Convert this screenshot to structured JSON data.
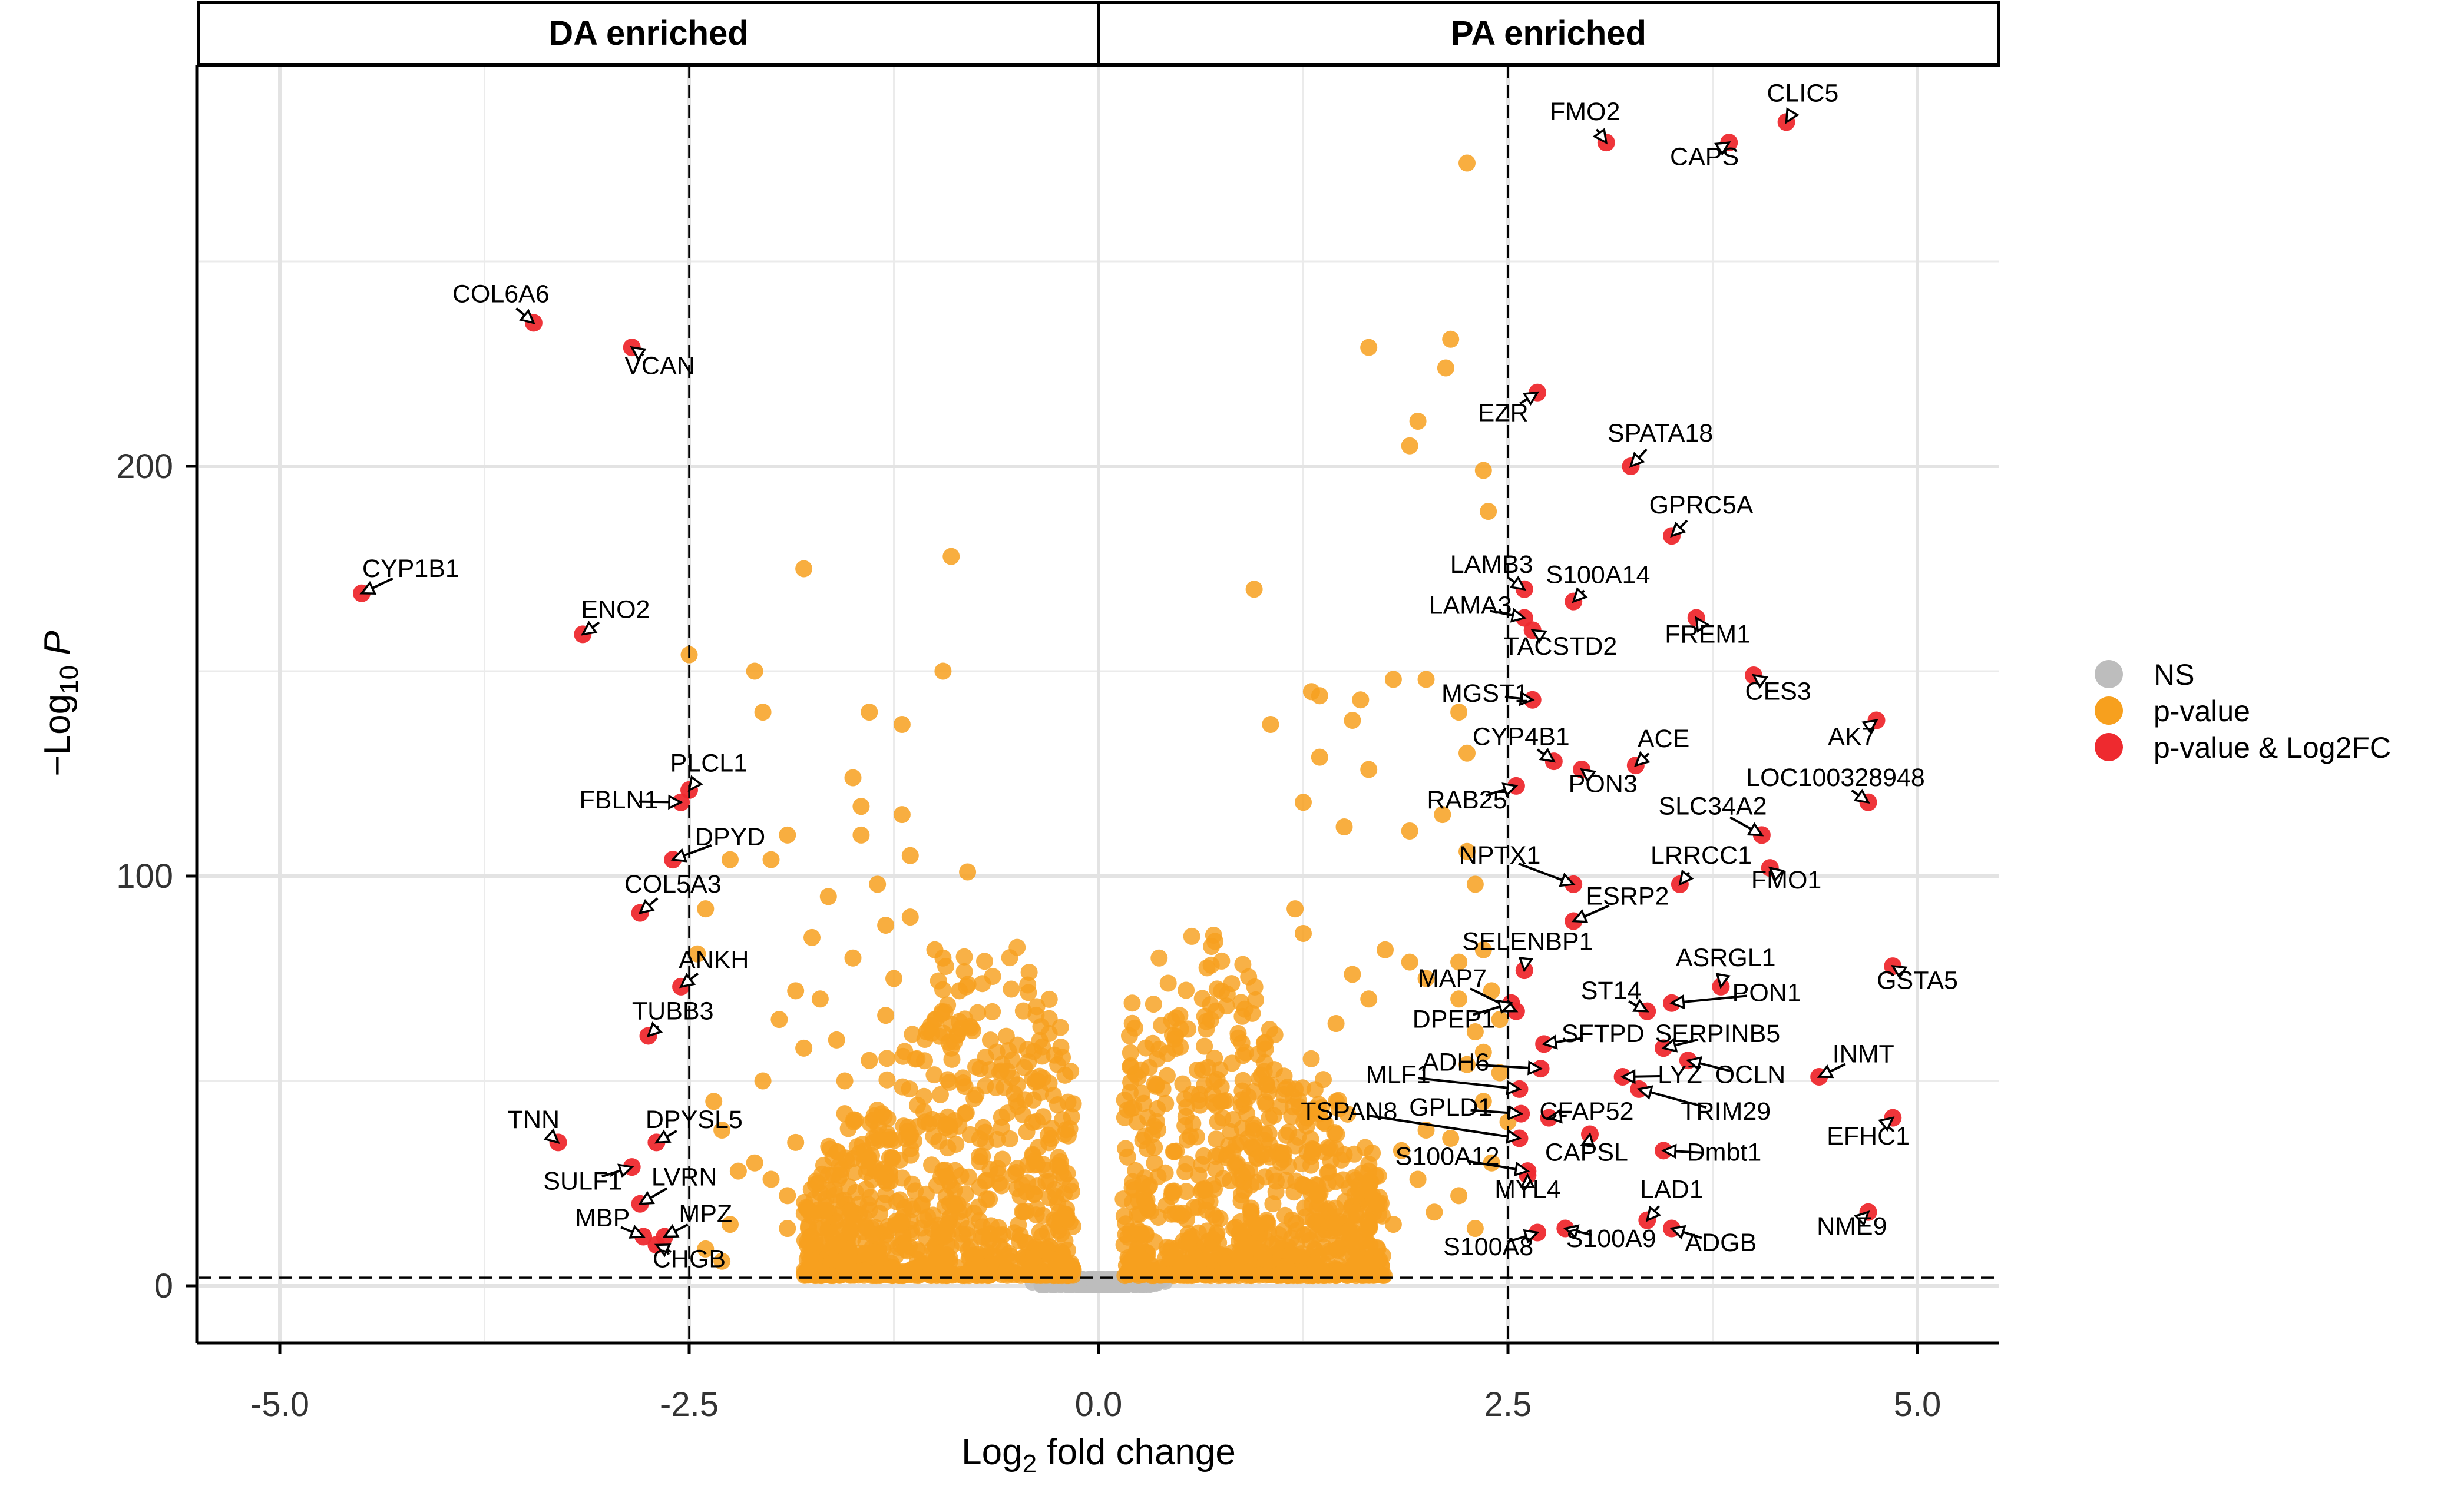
{
  "chart_data": {
    "type": "scatter",
    "subtype": "volcano",
    "xlabel": "Log2 fold change",
    "ylabel": "-Log10 P",
    "xlim": [
      -5.5,
      5.5
    ],
    "ylim": [
      -13,
      297
    ],
    "xticks": [
      -5.0,
      -2.5,
      0.0,
      2.5,
      5.0
    ],
    "xtick_labels": [
      "-5.0",
      "-2.5",
      "0.0",
      "2.5",
      "5.0"
    ],
    "yticks": [
      0,
      100,
      200
    ],
    "ytick_labels": [
      "0",
      "100",
      "200"
    ],
    "x_minor_ticks": [
      -3.75,
      -1.25,
      1.25,
      3.75
    ],
    "y_minor_ticks": [
      50,
      150,
      250
    ],
    "fc_threshold_lines": [
      -2.5,
      2.5
    ],
    "p_threshold_line": 2,
    "facet_left": "DA enriched",
    "facet_right": "PA enriched",
    "legend_position": "right",
    "legend": [
      {
        "label": "NS",
        "color": "#bdbdbd"
      },
      {
        "label": "p-value",
        "color": "#f7a01e"
      },
      {
        "label": "p-value & Log2FC",
        "color": "#ee2a2f"
      }
    ],
    "colors": {
      "ns": "#bdbdbd",
      "pvalue": "#f7a01e",
      "both": "#ee2a2f"
    },
    "pvalue_points": [
      [
        2.25,
        274
      ],
      [
        2.15,
        231
      ],
      [
        2.12,
        224
      ],
      [
        1.65,
        229
      ],
      [
        1.95,
        211
      ],
      [
        1.9,
        205
      ],
      [
        2.35,
        199
      ],
      [
        2.38,
        189
      ],
      [
        0.95,
        170
      ],
      [
        1.8,
        148
      ],
      [
        1.35,
        144
      ],
      [
        1.3,
        145
      ],
      [
        1.6,
        143
      ],
      [
        1.05,
        137
      ],
      [
        1.55,
        138
      ],
      [
        2.0,
        148
      ],
      [
        2.2,
        140
      ],
      [
        2.25,
        130
      ],
      [
        1.65,
        126
      ],
      [
        1.35,
        129
      ],
      [
        1.25,
        118
      ],
      [
        1.5,
        112
      ],
      [
        1.9,
        111
      ],
      [
        2.1,
        115
      ],
      [
        2.25,
        106
      ],
      [
        2.3,
        98
      ],
      [
        2.35,
        82
      ],
      [
        2.2,
        79
      ],
      [
        1.75,
        82
      ],
      [
        1.9,
        79
      ],
      [
        2.0,
        75
      ],
      [
        2.2,
        70
      ],
      [
        2.3,
        62
      ],
      [
        2.35,
        57
      ],
      [
        2.25,
        54
      ],
      [
        1.55,
        76
      ],
      [
        1.65,
        70
      ],
      [
        1.45,
        64
      ],
      [
        1.2,
        92
      ],
      [
        1.25,
        86
      ],
      [
        2.4,
        72
      ],
      [
        2.45,
        65
      ],
      [
        2.5,
        40
      ],
      [
        2.45,
        52
      ],
      [
        2.35,
        45
      ],
      [
        2.15,
        36
      ],
      [
        2.0,
        38
      ],
      [
        1.85,
        33
      ],
      [
        1.65,
        28
      ],
      [
        1.5,
        32
      ],
      [
        1.4,
        25
      ],
      [
        1.7,
        20
      ],
      [
        1.8,
        15
      ],
      [
        2.05,
        18
      ],
      [
        2.2,
        22
      ],
      [
        2.3,
        14
      ],
      [
        1.6,
        12
      ],
      [
        1.45,
        10
      ],
      [
        1.95,
        26
      ],
      [
        2.4,
        30
      ],
      [
        1.35,
        42
      ],
      [
        1.2,
        48
      ],
      [
        -0.9,
        178
      ],
      [
        -1.8,
        175
      ],
      [
        -0.95,
        150
      ],
      [
        -2.5,
        154
      ],
      [
        -2.1,
        150
      ],
      [
        -2.05,
        140
      ],
      [
        -1.4,
        140
      ],
      [
        -1.2,
        137
      ],
      [
        -1.5,
        124
      ],
      [
        -1.45,
        117
      ],
      [
        -1.2,
        115
      ],
      [
        -0.8,
        101
      ],
      [
        -1.9,
        110
      ],
      [
        -2.0,
        104
      ],
      [
        -2.25,
        104
      ],
      [
        -2.4,
        92
      ],
      [
        -2.45,
        81
      ],
      [
        -2.35,
        45
      ],
      [
        -2.3,
        38
      ],
      [
        -2.2,
        28
      ],
      [
        -2.1,
        30
      ],
      [
        -2.0,
        26
      ],
      [
        -1.85,
        35
      ],
      [
        -1.9,
        22
      ],
      [
        -2.25,
        15
      ],
      [
        -2.3,
        6
      ],
      [
        -2.4,
        9
      ],
      [
        -1.9,
        14
      ],
      [
        -1.75,
        17
      ],
      [
        -1.65,
        27
      ],
      [
        -1.5,
        31
      ],
      [
        -1.55,
        42
      ],
      [
        -1.4,
        55
      ],
      [
        -1.6,
        60
      ],
      [
        -1.7,
        70
      ],
      [
        -1.85,
        72
      ],
      [
        -1.95,
        65
      ],
      [
        -1.3,
        88
      ],
      [
        -1.35,
        98
      ],
      [
        -1.15,
        90
      ],
      [
        -1.0,
        82
      ],
      [
        -0.95,
        80
      ],
      [
        -0.85,
        72
      ],
      [
        -1.15,
        105
      ],
      [
        -1.45,
        110
      ],
      [
        -1.65,
        95
      ],
      [
        -1.75,
        85
      ],
      [
        -1.25,
        75
      ],
      [
        -1.05,
        62
      ],
      [
        -1.5,
        80
      ],
      [
        -1.8,
        58
      ],
      [
        -2.05,
        50
      ],
      [
        -0.9,
        58
      ],
      [
        -1.0,
        65
      ],
      [
        -1.55,
        50
      ],
      [
        -1.3,
        66
      ]
    ],
    "pvalue_cloud": {
      "left_x_range": [
        -1.8,
        -0.15
      ],
      "right_x_range": [
        0.15,
        1.75
      ],
      "count_per_side": 850
    },
    "ns_cloud": {
      "x_range": [
        -0.4,
        0.4
      ],
      "count": 500
    },
    "sig_genes": [
      {
        "gene": "FMO2",
        "x": 3.1,
        "y": 279
      },
      {
        "gene": "CLIC5",
        "x": 4.2,
        "y": 284
      },
      {
        "gene": "CAPS",
        "x": 3.85,
        "y": 279
      },
      {
        "gene": "COL6A6",
        "x": -3.45,
        "y": 235
      },
      {
        "gene": "VCAN",
        "x": -2.85,
        "y": 229
      },
      {
        "gene": "EZR",
        "x": 2.68,
        "y": 218
      },
      {
        "gene": "SPATA18",
        "x": 3.25,
        "y": 200
      },
      {
        "gene": "GPRC5A",
        "x": 3.5,
        "y": 183
      },
      {
        "gene": "CYP1B1",
        "x": -4.5,
        "y": 169
      },
      {
        "gene": "LAMB3",
        "x": 2.6,
        "y": 170
      },
      {
        "gene": "S100A14",
        "x": 2.9,
        "y": 167
      },
      {
        "gene": "ENO2",
        "x": -3.15,
        "y": 159
      },
      {
        "gene": "LAMA3",
        "x": 2.6,
        "y": 163
      },
      {
        "gene": "TACSTD2",
        "x": 2.65,
        "y": 160
      },
      {
        "gene": "FREM1",
        "x": 3.65,
        "y": 163
      },
      {
        "gene": "MGST1",
        "x": 2.65,
        "y": 143
      },
      {
        "gene": "CES3",
        "x": 4.0,
        "y": 149
      },
      {
        "gene": "AK7",
        "x": 4.75,
        "y": 138
      },
      {
        "gene": "CYP4B1",
        "x": 2.78,
        "y": 128
      },
      {
        "gene": "ACE",
        "x": 3.28,
        "y": 127
      },
      {
        "gene": "PON3",
        "x": 2.95,
        "y": 126
      },
      {
        "gene": "LOC100328948",
        "x": 4.7,
        "y": 118
      },
      {
        "gene": "PLCL1",
        "x": -2.5,
        "y": 121
      },
      {
        "gene": "FBLN1",
        "x": -2.55,
        "y": 118
      },
      {
        "gene": "RAB25",
        "x": 2.55,
        "y": 122
      },
      {
        "gene": "SLC34A2",
        "x": 4.05,
        "y": 110
      },
      {
        "gene": "DPYD",
        "x": -2.6,
        "y": 104
      },
      {
        "gene": "LRRCC1",
        "x": 3.55,
        "y": 98
      },
      {
        "gene": "FMO1",
        "x": 4.1,
        "y": 102
      },
      {
        "gene": "NPTX1",
        "x": 2.9,
        "y": 98
      },
      {
        "gene": "COL5A3",
        "x": -2.8,
        "y": 91
      },
      {
        "gene": "ESRP2",
        "x": 2.9,
        "y": 89
      },
      {
        "gene": "SELENBP1",
        "x": 2.6,
        "y": 77
      },
      {
        "gene": "GSTA5",
        "x": 4.85,
        "y": 78
      },
      {
        "gene": "ANKH",
        "x": -2.55,
        "y": 73
      },
      {
        "gene": "ASRGL1",
        "x": 3.8,
        "y": 73
      },
      {
        "gene": "PON1",
        "x": 3.5,
        "y": 69
      },
      {
        "gene": "ST14",
        "x": 3.35,
        "y": 67
      },
      {
        "gene": "MAP7",
        "x": 2.55,
        "y": 67
      },
      {
        "gene": "DPEP1",
        "x": 2.52,
        "y": 69
      },
      {
        "gene": "TUBB3",
        "x": -2.75,
        "y": 61
      },
      {
        "gene": "SFTPD",
        "x": 2.72,
        "y": 59
      },
      {
        "gene": "SERPINB5",
        "x": 3.45,
        "y": 58
      },
      {
        "gene": "OCLN",
        "x": 3.6,
        "y": 55
      },
      {
        "gene": "INMT",
        "x": 4.4,
        "y": 51
      },
      {
        "gene": "LYZ",
        "x": 3.2,
        "y": 51
      },
      {
        "gene": "ADH6",
        "x": 2.7,
        "y": 53
      },
      {
        "gene": "MLF1",
        "x": 2.57,
        "y": 48
      },
      {
        "gene": "TRIM29",
        "x": 3.3,
        "y": 48
      },
      {
        "gene": "GPLD1",
        "x": 2.58,
        "y": 42
      },
      {
        "gene": "CFAP52",
        "x": 2.75,
        "y": 41
      },
      {
        "gene": "EFHC1",
        "x": 4.85,
        "y": 41
      },
      {
        "gene": "TSPAN8",
        "x": 2.57,
        "y": 36
      },
      {
        "gene": "CAPSL",
        "x": 3.0,
        "y": 37
      },
      {
        "gene": "DPYSL5",
        "x": -2.7,
        "y": 35
      },
      {
        "gene": "TNN",
        "x": -3.3,
        "y": 35
      },
      {
        "gene": "Dmbt1",
        "x": 3.45,
        "y": 33
      },
      {
        "gene": "S100A12",
        "x": 2.62,
        "y": 28
      },
      {
        "gene": "SULF1",
        "x": -2.85,
        "y": 29
      },
      {
        "gene": "MYL4",
        "x": 2.62,
        "y": 27
      },
      {
        "gene": "LVRN",
        "x": -2.8,
        "y": 20
      },
      {
        "gene": "LAD1",
        "x": 3.35,
        "y": 16
      },
      {
        "gene": "NME9",
        "x": 4.7,
        "y": 18
      },
      {
        "gene": "ADGB",
        "x": 3.5,
        "y": 14
      },
      {
        "gene": "S100A9",
        "x": 2.85,
        "y": 14
      },
      {
        "gene": "S100A8",
        "x": 2.68,
        "y": 13
      },
      {
        "gene": "MBP",
        "x": -2.78,
        "y": 12
      },
      {
        "gene": "MPZ",
        "x": -2.65,
        "y": 12
      },
      {
        "gene": "CHGB",
        "x": -2.7,
        "y": 10
      }
    ],
    "labels": [
      {
        "gene": "FMO2",
        "lx": 2.97,
        "ly": 284.5
      },
      {
        "gene": "CLIC5",
        "lx": 4.3,
        "ly": 289
      },
      {
        "gene": "CAPS",
        "lx": 3.7,
        "ly": 273.5
      },
      {
        "gene": "COL6A6",
        "lx": -3.65,
        "ly": 240
      },
      {
        "gene": "VCAN",
        "lx": -2.68,
        "ly": 222.5
      },
      {
        "gene": "EZR",
        "lx": 2.47,
        "ly": 211
      },
      {
        "gene": "SPATA18",
        "lx": 3.43,
        "ly": 206
      },
      {
        "gene": "GPRC5A",
        "lx": 3.68,
        "ly": 188.5
      },
      {
        "gene": "CYP1B1",
        "lx": -4.2,
        "ly": 173
      },
      {
        "gene": "LAMB3",
        "lx": 2.4,
        "ly": 174
      },
      {
        "gene": "S100A14",
        "lx": 3.05,
        "ly": 171.5
      },
      {
        "gene": "ENO2",
        "lx": -2.95,
        "ly": 163
      },
      {
        "gene": "LAMA3",
        "lx": 2.27,
        "ly": 164
      },
      {
        "gene": "TACSTD2",
        "lx": 2.82,
        "ly": 154
      },
      {
        "gene": "FREM1",
        "lx": 3.72,
        "ly": 157
      },
      {
        "gene": "MGST1",
        "lx": 2.36,
        "ly": 142.5
      },
      {
        "gene": "CES3",
        "lx": 4.15,
        "ly": 143
      },
      {
        "gene": "AK7",
        "lx": 4.6,
        "ly": 132
      },
      {
        "gene": "CYP4B1",
        "lx": 2.58,
        "ly": 132
      },
      {
        "gene": "ACE",
        "lx": 3.45,
        "ly": 131.5
      },
      {
        "gene": "PON3",
        "lx": 3.08,
        "ly": 120.5
      },
      {
        "gene": "LOC100328948",
        "lx": 4.5,
        "ly": 122
      },
      {
        "gene": "PLCL1",
        "lx": -2.38,
        "ly": 125.5
      },
      {
        "gene": "FBLN1",
        "lx": -2.93,
        "ly": 116.5
      },
      {
        "gene": "RAB25",
        "lx": 2.25,
        "ly": 116.5
      },
      {
        "gene": "SLC34A2",
        "lx": 3.75,
        "ly": 115
      },
      {
        "gene": "DPYD",
        "lx": -2.25,
        "ly": 107.5
      },
      {
        "gene": "LRRCC1",
        "lx": 3.68,
        "ly": 103
      },
      {
        "gene": "FMO1",
        "lx": 4.2,
        "ly": 97
      },
      {
        "gene": "NPTX1",
        "lx": 2.45,
        "ly": 103
      },
      {
        "gene": "COL5A3",
        "lx": -2.6,
        "ly": 96
      },
      {
        "gene": "ESRP2",
        "lx": 3.23,
        "ly": 93
      },
      {
        "gene": "SELENBP1",
        "lx": 2.62,
        "ly": 82
      },
      {
        "gene": "GSTA5",
        "lx": 5.0,
        "ly": 72.5
      },
      {
        "gene": "ANKH",
        "lx": -2.35,
        "ly": 77.5
      },
      {
        "gene": "ASRGL1",
        "lx": 3.83,
        "ly": 78
      },
      {
        "gene": "PON1",
        "lx": 4.08,
        "ly": 69.5
      },
      {
        "gene": "ST14",
        "lx": 3.13,
        "ly": 70
      },
      {
        "gene": "MAP7",
        "lx": 2.16,
        "ly": 73
      },
      {
        "gene": "DPEP1",
        "lx": 2.17,
        "ly": 63
      },
      {
        "gene": "TUBB3",
        "lx": -2.6,
        "ly": 65
      },
      {
        "gene": "SFTPD",
        "lx": 3.08,
        "ly": 59.5
      },
      {
        "gene": "SERPINB5",
        "lx": 3.78,
        "ly": 59.5
      },
      {
        "gene": "OCLN",
        "lx": 3.98,
        "ly": 49.5
      },
      {
        "gene": "INMT",
        "lx": 4.67,
        "ly": 54.5
      },
      {
        "gene": "LYZ",
        "lx": 3.55,
        "ly": 49.5
      },
      {
        "gene": "ADH6",
        "lx": 2.18,
        "ly": 52.5
      },
      {
        "gene": "MLF1",
        "lx": 1.83,
        "ly": 49.5
      },
      {
        "gene": "TRIM29",
        "lx": 3.83,
        "ly": 40.5
      },
      {
        "gene": "GPLD1",
        "lx": 2.15,
        "ly": 41.5
      },
      {
        "gene": "CFAP52",
        "lx": 2.98,
        "ly": 40.5
      },
      {
        "gene": "EFHC1",
        "lx": 4.7,
        "ly": 34.5
      },
      {
        "gene": "TSPAN8",
        "lx": 1.53,
        "ly": 40.5
      },
      {
        "gene": "CAPSL",
        "lx": 2.98,
        "ly": 30.5
      },
      {
        "gene": "DPYSL5",
        "lx": -2.47,
        "ly": 38.5
      },
      {
        "gene": "TNN",
        "lx": -3.45,
        "ly": 38.5
      },
      {
        "gene": "Dmbt1",
        "lx": 3.82,
        "ly": 30.5
      },
      {
        "gene": "S100A12",
        "lx": 2.13,
        "ly": 29.5
      },
      {
        "gene": "SULF1",
        "lx": -3.15,
        "ly": 23.5
      },
      {
        "gene": "MYL4",
        "lx": 2.62,
        "ly": 21.5
      },
      {
        "gene": "LVRN",
        "lx": -2.53,
        "ly": 24.5
      },
      {
        "gene": "LAD1",
        "lx": 3.5,
        "ly": 21.5
      },
      {
        "gene": "NME9",
        "lx": 4.6,
        "ly": 12.5
      },
      {
        "gene": "ADGB",
        "lx": 3.8,
        "ly": 8.5
      },
      {
        "gene": "S100A9",
        "lx": 3.13,
        "ly": 9.5
      },
      {
        "gene": "S100A8",
        "lx": 2.38,
        "ly": 7.5
      },
      {
        "gene": "MBP",
        "lx": -3.03,
        "ly": 14.5
      },
      {
        "gene": "MPZ",
        "lx": -2.4,
        "ly": 15.5
      },
      {
        "gene": "CHGB",
        "lx": -2.5,
        "ly": 4.5
      }
    ]
  }
}
